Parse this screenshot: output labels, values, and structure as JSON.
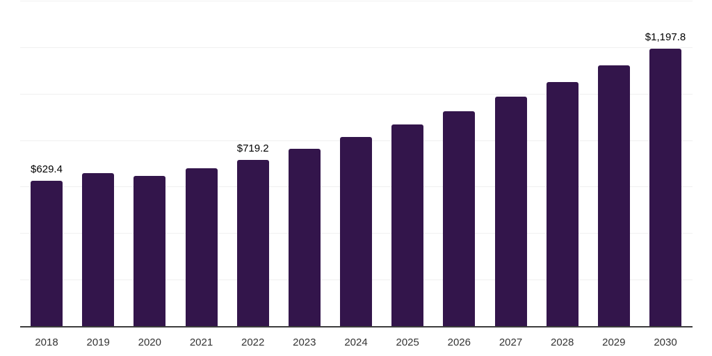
{
  "chart_data": {
    "type": "bar",
    "title": "",
    "xlabel": "",
    "ylabel": "",
    "categories": [
      "2018",
      "2019",
      "2020",
      "2021",
      "2022",
      "2023",
      "2024",
      "2025",
      "2026",
      "2027",
      "2028",
      "2029",
      "2030"
    ],
    "values": [
      629.4,
      662,
      650,
      681,
      719.2,
      766.5,
      817,
      871,
      928,
      989,
      1054,
      1124,
      1197.8
    ],
    "data_labels": [
      "$629.4",
      "",
      "",
      "",
      "$719.2",
      "",
      "",
      "",
      "",
      "",
      "",
      "",
      "$1,197.8"
    ],
    "ylim": [
      0,
      1400
    ],
    "ytick_step": 200,
    "y_axis_labels_visible": false,
    "grid": "horizontal",
    "legend": "none",
    "colors": {
      "bar": "#33154b",
      "gridline": "#f0f0f0",
      "axis_line": "#3c3c3c",
      "value_label": "#000000",
      "tick_label": "#333333",
      "background": "#ffffff"
    }
  }
}
